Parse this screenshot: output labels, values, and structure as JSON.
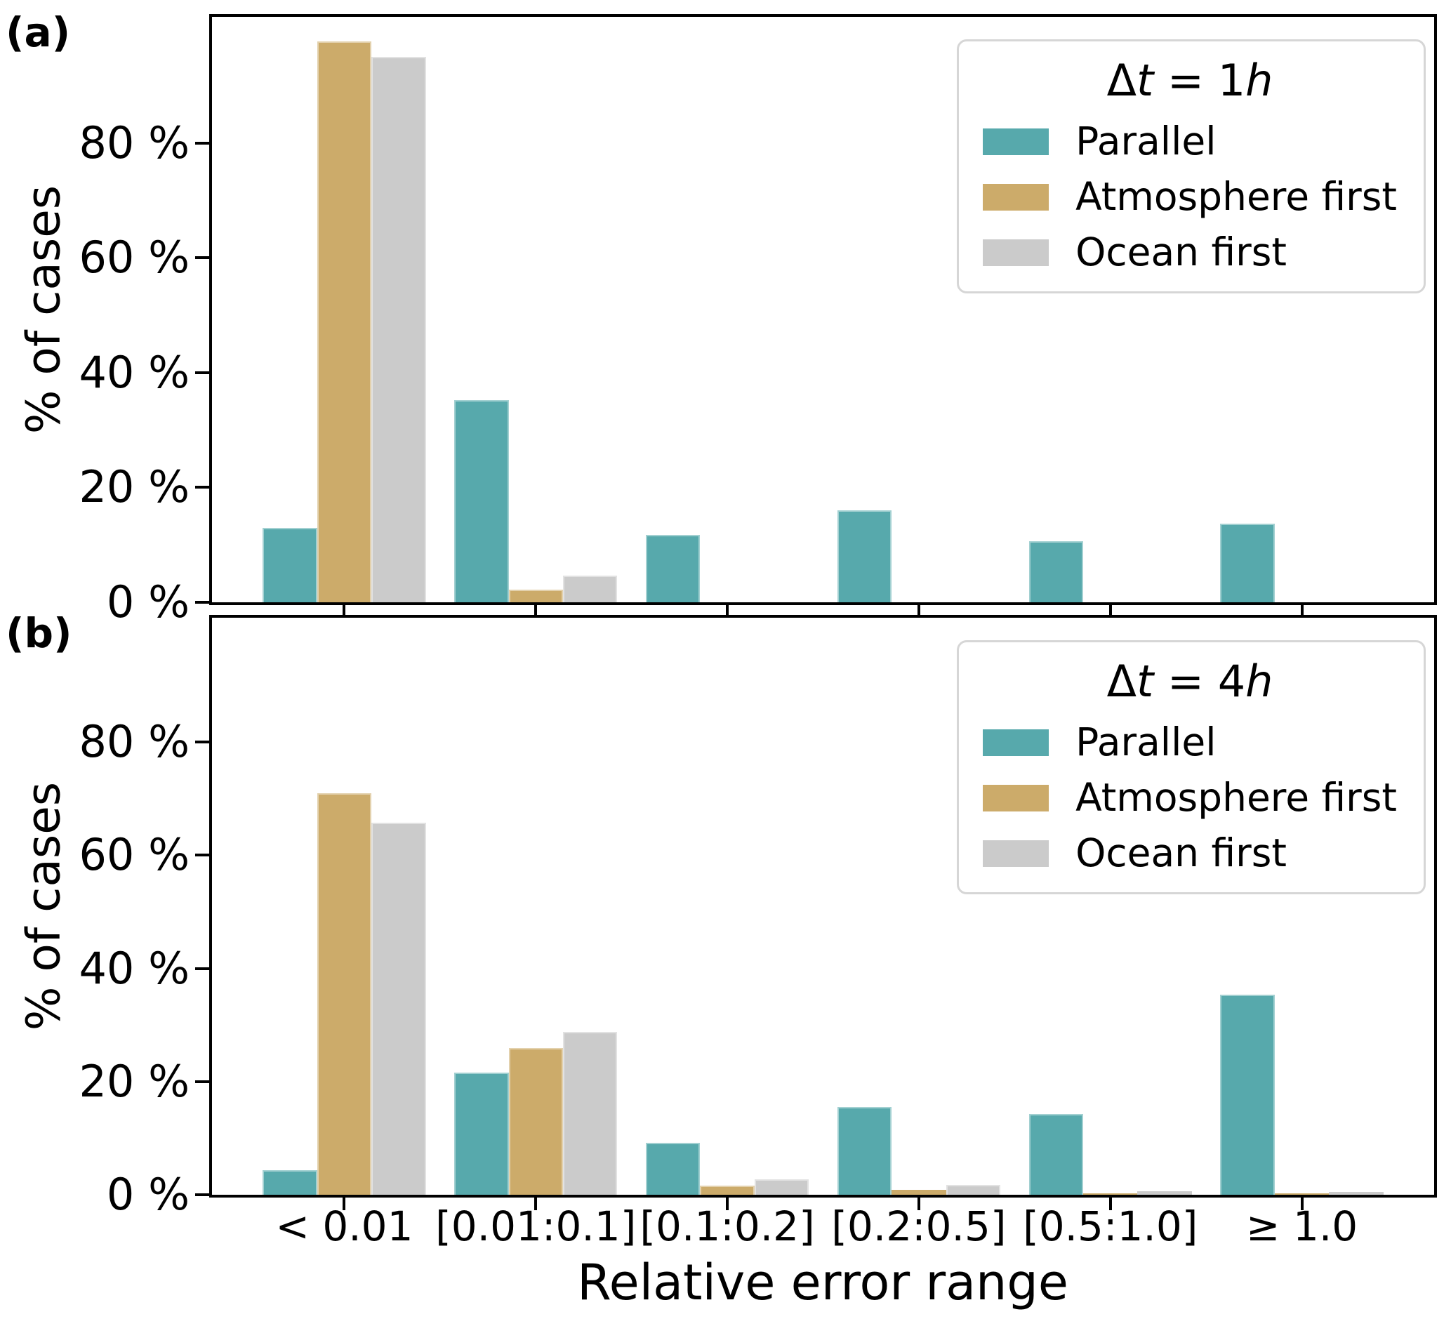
{
  "figure": {
    "panel_a_label": "(a)",
    "panel_b_label": "(b)",
    "ylabel": "% of cases",
    "xlabel": "Relative error range"
  },
  "colors": {
    "parallel": "#57a9ac",
    "atmosphere_first": "#ccab6a",
    "ocean_first": "#cbcbcb",
    "legend_border": "#d6d6d6",
    "axis": "#000000",
    "background": "#ffffff"
  },
  "chart_data": [
    {
      "type": "bar",
      "panel": "a",
      "legend_title": "Δt = 1h",
      "categories": [
        "< 0.01",
        "[0.01:0.1]",
        "[0.1:0.2]",
        "[0.2:0.5]",
        "[0.5:1.0]",
        "≥ 1.0"
      ],
      "series": [
        {
          "name": "Parallel",
          "color": "#57a9ac",
          "values": [
            13.0,
            35.2,
            11.7,
            16.0,
            10.6,
            13.7
          ]
        },
        {
          "name": "Atmosphere first",
          "color": "#ccab6a",
          "values": [
            97.7,
            2.2,
            0,
            0,
            0,
            0
          ]
        },
        {
          "name": "Ocean first",
          "color": "#cbcbcb",
          "values": [
            95.0,
            4.7,
            0,
            0,
            0,
            0
          ]
        }
      ],
      "ylabel": "% of cases",
      "xlabel": "",
      "ylim": [
        0,
        102
      ],
      "yticks": [
        0,
        20,
        40,
        60,
        80
      ],
      "ytick_labels": [
        "0 %",
        "20 %",
        "40 %",
        "60 %",
        "80 %"
      ],
      "show_xticklabels": false,
      "legend_position": "upper right",
      "grid": false
    },
    {
      "type": "bar",
      "panel": "b",
      "legend_title": "Δt = 4h",
      "categories": [
        "< 0.01",
        "[0.01:0.1]",
        "[0.1:0.2]",
        "[0.2:0.5]",
        "[0.5:1.0]",
        "≥ 1.0"
      ],
      "series": [
        {
          "name": "Parallel",
          "color": "#57a9ac",
          "values": [
            4.4,
            21.6,
            9.2,
            15.5,
            14.3,
            35.4
          ]
        },
        {
          "name": "Atmosphere first",
          "color": "#ccab6a",
          "values": [
            71.0,
            25.9,
            1.6,
            0.9,
            0.3,
            0.2
          ]
        },
        {
          "name": "Ocean first",
          "color": "#cbcbcb",
          "values": [
            65.8,
            28.8,
            2.7,
            1.7,
            0.6,
            0.5
          ]
        }
      ],
      "ylabel": "% of cases",
      "xlabel": "Relative error range",
      "ylim": [
        0,
        102
      ],
      "yticks": [
        0,
        20,
        40,
        60,
        80
      ],
      "ytick_labels": [
        "0 %",
        "20 %",
        "40 %",
        "60 %",
        "80 %"
      ],
      "show_xticklabels": true,
      "legend_position": "upper right",
      "grid": false
    }
  ]
}
